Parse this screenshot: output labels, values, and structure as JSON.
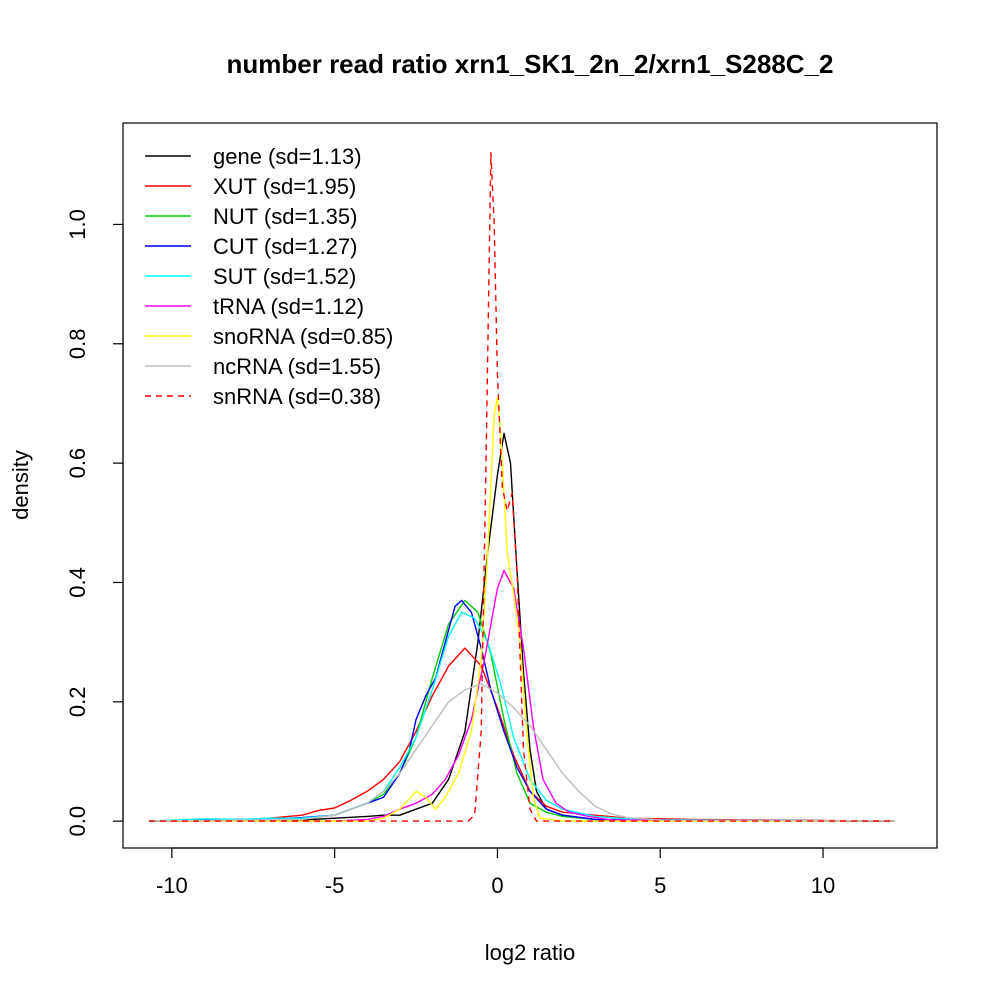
{
  "chart_data": {
    "type": "line",
    "title": "number read ratio xrn1_SK1_2n_2/xrn1_S288C_2",
    "xlabel": "log2 ratio",
    "ylabel": "density",
    "xlim": [
      -11.5,
      13.5
    ],
    "ylim": [
      -0.045,
      1.17
    ],
    "xticks": [
      -10,
      -5,
      0,
      5,
      10
    ],
    "xtick_labels": [
      "-10",
      "-5",
      "0",
      "5",
      "10"
    ],
    "yticks": [
      0.0,
      0.2,
      0.4,
      0.6,
      0.8,
      1.0
    ],
    "ytick_labels": [
      "0.0",
      "0.2",
      "0.4",
      "0.6",
      "0.8",
      "1.0"
    ],
    "grid": false,
    "legend_position": "top-left",
    "series": [
      {
        "name": "gene",
        "legend": "gene (sd=1.13)",
        "color": "#000000",
        "dash": "solid",
        "points": [
          [
            -10.7,
            0
          ],
          [
            -8,
            0.001
          ],
          [
            -6,
            0.002
          ],
          [
            -5,
            0.005
          ],
          [
            -4,
            0.008
          ],
          [
            -3.5,
            0.01
          ],
          [
            -3,
            0.01
          ],
          [
            -2.5,
            0.02
          ],
          [
            -2,
            0.03
          ],
          [
            -1.5,
            0.07
          ],
          [
            -1,
            0.15
          ],
          [
            -0.6,
            0.3
          ],
          [
            -0.3,
            0.45
          ],
          [
            0,
            0.58
          ],
          [
            0.2,
            0.65
          ],
          [
            0.4,
            0.6
          ],
          [
            0.6,
            0.42
          ],
          [
            0.8,
            0.25
          ],
          [
            1,
            0.12
          ],
          [
            1.2,
            0.05
          ],
          [
            1.5,
            0.02
          ],
          [
            2,
            0.01
          ],
          [
            3,
            0.003
          ],
          [
            5,
            0.001
          ],
          [
            12.2,
            0
          ]
        ]
      },
      {
        "name": "XUT",
        "legend": "XUT (sd=1.95)",
        "color": "#ff0000",
        "dash": "solid",
        "points": [
          [
            -10.7,
            0
          ],
          [
            -8,
            0.002
          ],
          [
            -7,
            0.005
          ],
          [
            -6,
            0.01
          ],
          [
            -5.5,
            0.018
          ],
          [
            -5,
            0.022
          ],
          [
            -4.5,
            0.035
          ],
          [
            -4,
            0.05
          ],
          [
            -3.5,
            0.07
          ],
          [
            -3,
            0.1
          ],
          [
            -2.5,
            0.15
          ],
          [
            -2,
            0.21
          ],
          [
            -1.5,
            0.26
          ],
          [
            -1,
            0.29
          ],
          [
            -0.5,
            0.26
          ],
          [
            0,
            0.19
          ],
          [
            0.5,
            0.11
          ],
          [
            1,
            0.05
          ],
          [
            1.5,
            0.025
          ],
          [
            2,
            0.015
          ],
          [
            3,
            0.01
          ],
          [
            4,
            0.005
          ],
          [
            6,
            0.003
          ],
          [
            12.2,
            0
          ]
        ]
      },
      {
        "name": "NUT",
        "legend": "NUT (sd=1.35)",
        "color": "#00cd00",
        "dash": "solid",
        "points": [
          [
            -10.7,
            0
          ],
          [
            -7,
            0.003
          ],
          [
            -6,
            0.005
          ],
          [
            -5,
            0.01
          ],
          [
            -4,
            0.03
          ],
          [
            -3.5,
            0.045
          ],
          [
            -3,
            0.08
          ],
          [
            -2.5,
            0.14
          ],
          [
            -2,
            0.24
          ],
          [
            -1.5,
            0.33
          ],
          [
            -1,
            0.37
          ],
          [
            -0.6,
            0.35
          ],
          [
            -0.2,
            0.28
          ],
          [
            0.2,
            0.17
          ],
          [
            0.6,
            0.08
          ],
          [
            1,
            0.03
          ],
          [
            1.5,
            0.015
          ],
          [
            2,
            0.008
          ],
          [
            3,
            0.003
          ],
          [
            12.2,
            0
          ]
        ]
      },
      {
        "name": "CUT",
        "legend": "CUT (sd=1.27)",
        "color": "#0000ff",
        "dash": "solid",
        "points": [
          [
            -10.7,
            0
          ],
          [
            -7,
            0.004
          ],
          [
            -6,
            0.006
          ],
          [
            -5,
            0.01
          ],
          [
            -4,
            0.03
          ],
          [
            -3.5,
            0.04
          ],
          [
            -3,
            0.08
          ],
          [
            -2.7,
            0.12
          ],
          [
            -2.5,
            0.17
          ],
          [
            -2.2,
            0.21
          ],
          [
            -1.9,
            0.24
          ],
          [
            -1.6,
            0.3
          ],
          [
            -1.3,
            0.36
          ],
          [
            -1.1,
            0.37
          ],
          [
            -0.8,
            0.35
          ],
          [
            -0.5,
            0.29
          ],
          [
            -0.2,
            0.22
          ],
          [
            0.2,
            0.15
          ],
          [
            0.6,
            0.09
          ],
          [
            1,
            0.05
          ],
          [
            1.5,
            0.02
          ],
          [
            2,
            0.01
          ],
          [
            3,
            0.003
          ],
          [
            12.2,
            0
          ]
        ]
      },
      {
        "name": "SUT",
        "legend": "SUT (sd=1.52)",
        "color": "#00ffff",
        "dash": "solid",
        "points": [
          [
            -10.7,
            0
          ],
          [
            -9,
            0.004
          ],
          [
            -8,
            0.003
          ],
          [
            -7,
            0.005
          ],
          [
            -6,
            0.005
          ],
          [
            -5,
            0.01
          ],
          [
            -4,
            0.03
          ],
          [
            -3.5,
            0.05
          ],
          [
            -3,
            0.09
          ],
          [
            -2.5,
            0.14
          ],
          [
            -2,
            0.22
          ],
          [
            -1.5,
            0.31
          ],
          [
            -1.1,
            0.35
          ],
          [
            -0.7,
            0.34
          ],
          [
            -0.3,
            0.3
          ],
          [
            0.1,
            0.23
          ],
          [
            0.5,
            0.14
          ],
          [
            1,
            0.07
          ],
          [
            1.5,
            0.035
          ],
          [
            2,
            0.02
          ],
          [
            3,
            0.008
          ],
          [
            4,
            0.004
          ],
          [
            5,
            0.002
          ],
          [
            12.2,
            0
          ]
        ]
      },
      {
        "name": "tRNA",
        "legend": "tRNA (sd=1.12)",
        "color": "#ff00ff",
        "dash": "solid",
        "points": [
          [
            -10.7,
            0
          ],
          [
            -5,
            0
          ],
          [
            -4,
            0.003
          ],
          [
            -3.5,
            0.008
          ],
          [
            -3,
            0.02
          ],
          [
            -2.5,
            0.03
          ],
          [
            -2,
            0.045
          ],
          [
            -1.6,
            0.07
          ],
          [
            -1.2,
            0.11
          ],
          [
            -0.8,
            0.17
          ],
          [
            -0.4,
            0.27
          ],
          [
            0,
            0.39
          ],
          [
            0.2,
            0.42
          ],
          [
            0.5,
            0.39
          ],
          [
            0.8,
            0.29
          ],
          [
            1.1,
            0.16
          ],
          [
            1.4,
            0.07
          ],
          [
            1.8,
            0.03
          ],
          [
            2.2,
            0.015
          ],
          [
            2.8,
            0.008
          ],
          [
            3.5,
            0.002
          ],
          [
            12.2,
            0
          ]
        ]
      },
      {
        "name": "snoRNA",
        "legend": "snoRNA (sd=0.85)",
        "color": "#ffff00",
        "dash": "solid",
        "points": [
          [
            -10.7,
            0
          ],
          [
            -4,
            0
          ],
          [
            -3.5,
            0.005
          ],
          [
            -3,
            0.02
          ],
          [
            -2.5,
            0.05
          ],
          [
            -2.2,
            0.04
          ],
          [
            -1.9,
            0.02
          ],
          [
            -1.6,
            0.04
          ],
          [
            -1.2,
            0.08
          ],
          [
            -0.8,
            0.15
          ],
          [
            -0.5,
            0.27
          ],
          [
            -0.3,
            0.45
          ],
          [
            -0.1,
            0.68
          ],
          [
            0,
            0.71
          ],
          [
            0.1,
            0.65
          ],
          [
            0.3,
            0.45
          ],
          [
            0.5,
            0.38
          ],
          [
            0.7,
            0.3
          ],
          [
            0.9,
            0.15
          ],
          [
            1.1,
            0.04
          ],
          [
            1.3,
            0.005
          ],
          [
            2,
            0
          ],
          [
            12.2,
            0
          ]
        ]
      },
      {
        "name": "ncRNA",
        "legend": "ncRNA (sd=1.55)",
        "color": "#bebebe",
        "dash": "solid",
        "points": [
          [
            -10.7,
            0
          ],
          [
            -6,
            0.003
          ],
          [
            -5,
            0.01
          ],
          [
            -4,
            0.03
          ],
          [
            -3.5,
            0.05
          ],
          [
            -3,
            0.08
          ],
          [
            -2.5,
            0.12
          ],
          [
            -2,
            0.16
          ],
          [
            -1.5,
            0.2
          ],
          [
            -1,
            0.22
          ],
          [
            -0.5,
            0.23
          ],
          [
            0,
            0.215
          ],
          [
            0.5,
            0.19
          ],
          [
            1,
            0.16
          ],
          [
            1.5,
            0.12
          ],
          [
            2,
            0.08
          ],
          [
            2.5,
            0.05
          ],
          [
            3,
            0.025
          ],
          [
            3.5,
            0.012
          ],
          [
            4,
            0.006
          ],
          [
            5,
            0.002
          ],
          [
            12.2,
            0
          ]
        ]
      },
      {
        "name": "snRNA",
        "legend": "snRNA (sd=0.38)",
        "color": "#ff0000",
        "dash": "dashed",
        "points": [
          [
            -10.7,
            0
          ],
          [
            -0.9,
            0
          ],
          [
            -0.7,
            0.01
          ],
          [
            -0.5,
            0.15
          ],
          [
            -0.35,
            0.6
          ],
          [
            -0.2,
            1.12
          ],
          [
            -0.1,
            1.0
          ],
          [
            0,
            0.75
          ],
          [
            0.15,
            0.56
          ],
          [
            0.3,
            0.52
          ],
          [
            0.45,
            0.55
          ],
          [
            0.6,
            0.42
          ],
          [
            0.8,
            0.12
          ],
          [
            1,
            0.02
          ],
          [
            1.2,
            0
          ],
          [
            12.2,
            0
          ]
        ]
      }
    ]
  }
}
